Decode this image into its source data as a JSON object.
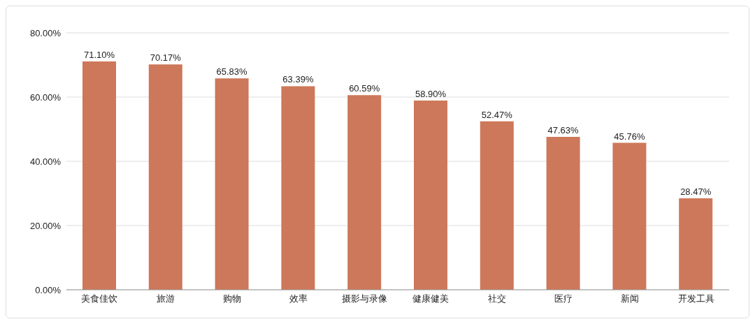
{
  "chart_data": {
    "type": "bar",
    "categories": [
      "美食佳饮",
      "旅游",
      "购物",
      "效率",
      "摄影与录像",
      "健康健美",
      "社交",
      "医疗",
      "新闻",
      "开发工具"
    ],
    "values": [
      71.1,
      70.17,
      65.83,
      63.39,
      60.59,
      58.9,
      52.47,
      47.63,
      45.76,
      28.47
    ],
    "value_labels": [
      "71.10%",
      "70.17%",
      "65.83%",
      "63.39%",
      "60.59%",
      "58.90%",
      "52.47%",
      "47.63%",
      "45.76%",
      "28.47%"
    ],
    "color": "#cd785a",
    "ylim": [
      0,
      80
    ],
    "yticks": [
      {
        "value": 0,
        "label": "0.00%"
      },
      {
        "value": 20,
        "label": "20.00%"
      },
      {
        "value": 40,
        "label": "40.00%"
      },
      {
        "value": 60,
        "label": "60.00%"
      },
      {
        "value": 80,
        "label": "80.00%"
      }
    ],
    "grid": "y"
  }
}
